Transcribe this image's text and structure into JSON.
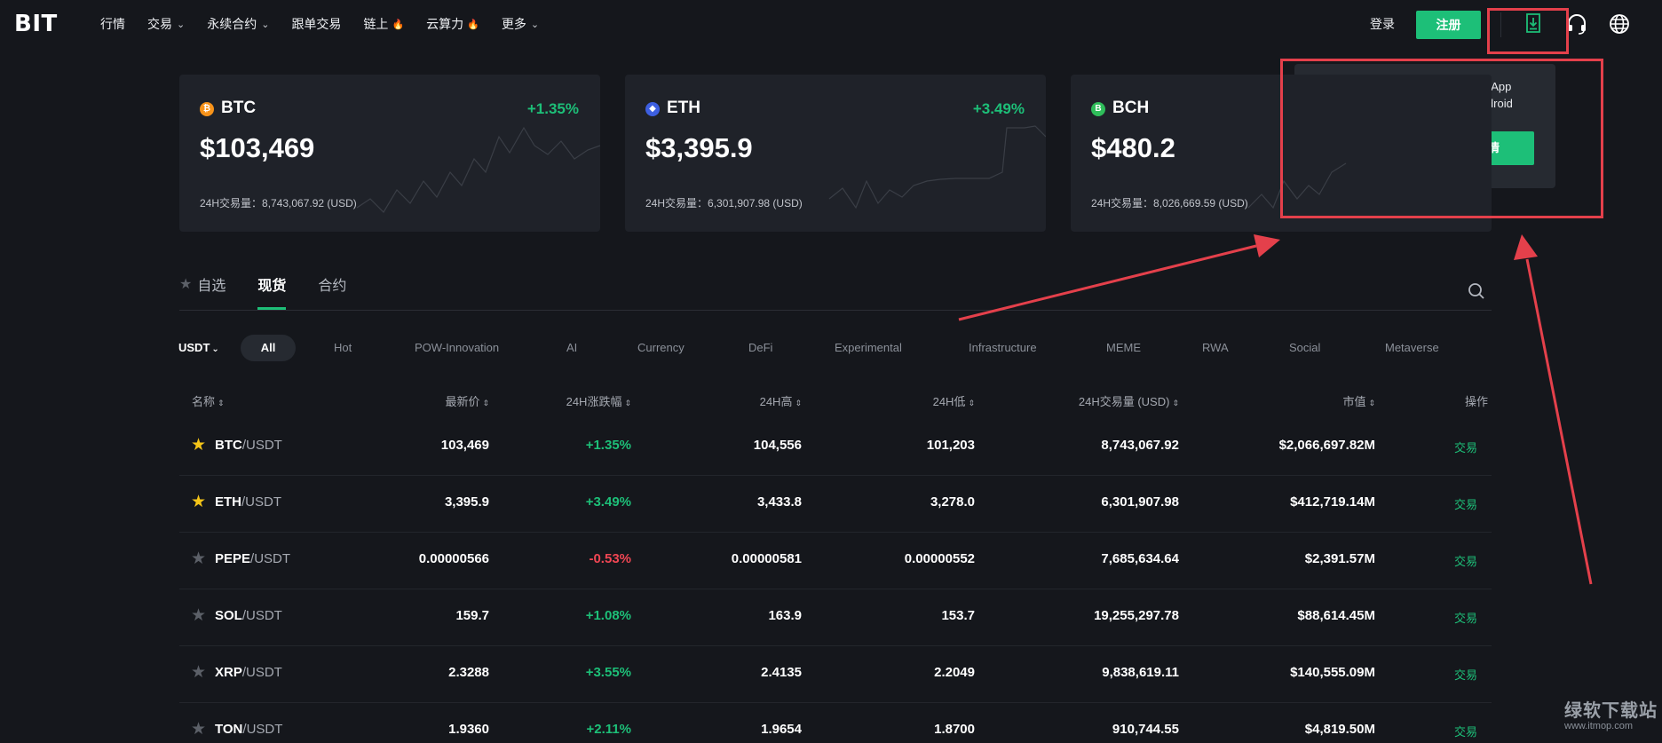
{
  "header": {
    "logo": "BIT",
    "nav": [
      {
        "label": "行情",
        "chevron": false,
        "fire": false
      },
      {
        "label": "交易",
        "chevron": true,
        "fire": false
      },
      {
        "label": "永续合约",
        "chevron": true,
        "fire": false
      },
      {
        "label": "跟单交易",
        "chevron": false,
        "fire": false
      },
      {
        "label": "链上",
        "chevron": false,
        "fire": true
      },
      {
        "label": "云算力",
        "chevron": false,
        "fire": true
      },
      {
        "label": "更多",
        "chevron": true,
        "fire": false
      }
    ],
    "login": "登录",
    "register": "注册"
  },
  "download_popup": {
    "title_line1": "扫码下载 App",
    "title_line2": "iOS & Android",
    "button": "查看详情"
  },
  "cards": [
    {
      "symbol": "BTC",
      "badge": "₿",
      "badge_color": "#f7931a",
      "change": "+1.35%",
      "price": "$103,469",
      "volume": "24H交易量：8,743,067.92 (USD)"
    },
    {
      "symbol": "ETH",
      "badge": "◆",
      "badge_color": "#3d5fe0",
      "change": "+3.49%",
      "price": "$3,395.9",
      "volume": "24H交易量：6,301,907.98 (USD)"
    },
    {
      "symbol": "BCH",
      "badge": "B",
      "badge_color": "#2fbd5a",
      "change": "",
      "price": "$480.2",
      "volume": "24H交易量：8,026,669.59 (USD)"
    }
  ],
  "tabs": [
    {
      "label": "自选",
      "active": false
    },
    {
      "label": "现货",
      "active": true
    },
    {
      "label": "合约",
      "active": false
    }
  ],
  "quote_currency": "USDT",
  "filters": [
    "All",
    "Hot",
    "POW-Innovation",
    "AI",
    "Currency",
    "DeFi",
    "Experimental",
    "Infrastructure",
    "MEME",
    "RWA",
    "Social",
    "Metaverse"
  ],
  "table": {
    "headers": [
      "名称",
      "最新价",
      "24H涨跌幅",
      "24H高",
      "24H低",
      "24H交易量 (USD)",
      "市值",
      "操作"
    ],
    "rows": [
      {
        "base": "BTC",
        "quote": "/USDT",
        "fav": true,
        "price": "103,469",
        "change": "+1.35%",
        "dir": "up",
        "high": "104,556",
        "low": "101,203",
        "volume": "8,743,067.92",
        "mcap": "$2,066,697.82M",
        "action": "交易"
      },
      {
        "base": "ETH",
        "quote": "/USDT",
        "fav": true,
        "price": "3,395.9",
        "change": "+3.49%",
        "dir": "up",
        "high": "3,433.8",
        "low": "3,278.0",
        "volume": "6,301,907.98",
        "mcap": "$412,719.14M",
        "action": "交易"
      },
      {
        "base": "PEPE",
        "quote": "/USDT",
        "fav": false,
        "price": "0.00000566",
        "change": "-0.53%",
        "dir": "down",
        "high": "0.00000581",
        "low": "0.00000552",
        "volume": "7,685,634.64",
        "mcap": "$2,391.57M",
        "action": "交易"
      },
      {
        "base": "SOL",
        "quote": "/USDT",
        "fav": false,
        "price": "159.7",
        "change": "+1.08%",
        "dir": "up",
        "high": "163.9",
        "low": "153.7",
        "volume": "19,255,297.78",
        "mcap": "$88,614.45M",
        "action": "交易"
      },
      {
        "base": "XRP",
        "quote": "/USDT",
        "fav": false,
        "price": "2.3288",
        "change": "+3.55%",
        "dir": "up",
        "high": "2.4135",
        "low": "2.2049",
        "volume": "9,838,619.11",
        "mcap": "$140,555.09M",
        "action": "交易"
      },
      {
        "base": "TON",
        "quote": "/USDT",
        "fav": false,
        "price": "1.9360",
        "change": "+2.11%",
        "dir": "up",
        "high": "1.9654",
        "low": "1.8700",
        "volume": "910,744.55",
        "mcap": "$4,819.50M",
        "action": "交易"
      }
    ]
  },
  "watermark": {
    "text": "绿软下载站",
    "url": "www.itmop.com"
  },
  "colors": {
    "accent": "#1dbf78",
    "down": "#f04653",
    "annotation": "#e4404b"
  }
}
